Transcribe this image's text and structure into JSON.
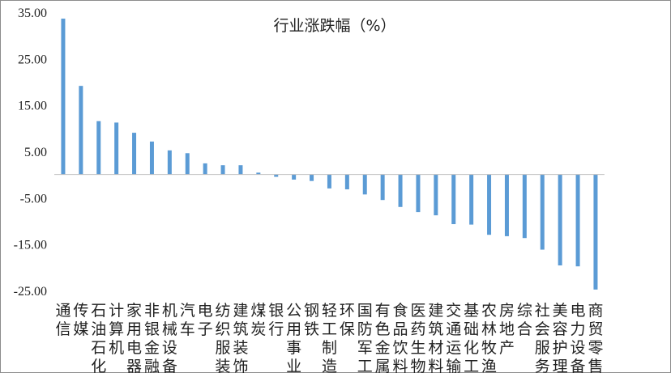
{
  "chart_data": {
    "type": "bar",
    "title": "行业涨跌幅（%）",
    "xlabel": "",
    "ylabel": "",
    "ylim": [
      -25,
      35
    ],
    "yticks": [
      "35.00",
      "25.00",
      "15.00",
      "5.00",
      "-5.00",
      "-15.00",
      "-25.00"
    ],
    "grid": false,
    "legend": "none",
    "bar_color": "#5B9BD5",
    "categories": [
      "通信",
      "传媒",
      "石油石化",
      "计算机",
      "家用电器",
      "非银金融",
      "机械设备",
      "汽车",
      "电子",
      "纺织服装",
      "建筑装饰",
      "煤炭",
      "银行",
      "公用事业",
      "钢铁",
      "轻工制造",
      "环保",
      "国防军工",
      "有色金属",
      "食品饮料",
      "医药生物",
      "建筑材料",
      "交通运输",
      "基础化工",
      "农林牧渔",
      "房地产",
      "综合",
      "社会服务",
      "美容护理",
      "电力设备",
      "商贸零售"
    ],
    "values": [
      33.6,
      19.1,
      11.5,
      11.2,
      9.0,
      7.1,
      5.2,
      4.6,
      2.4,
      2.0,
      2.0,
      0.4,
      -0.5,
      -1.1,
      -1.4,
      -3.0,
      -3.2,
      -4.3,
      -5.5,
      -7.0,
      -8.1,
      -8.8,
      -10.7,
      -10.8,
      -13.0,
      -13.3,
      -13.7,
      -16.2,
      -19.6,
      -19.8,
      -24.8
    ]
  }
}
